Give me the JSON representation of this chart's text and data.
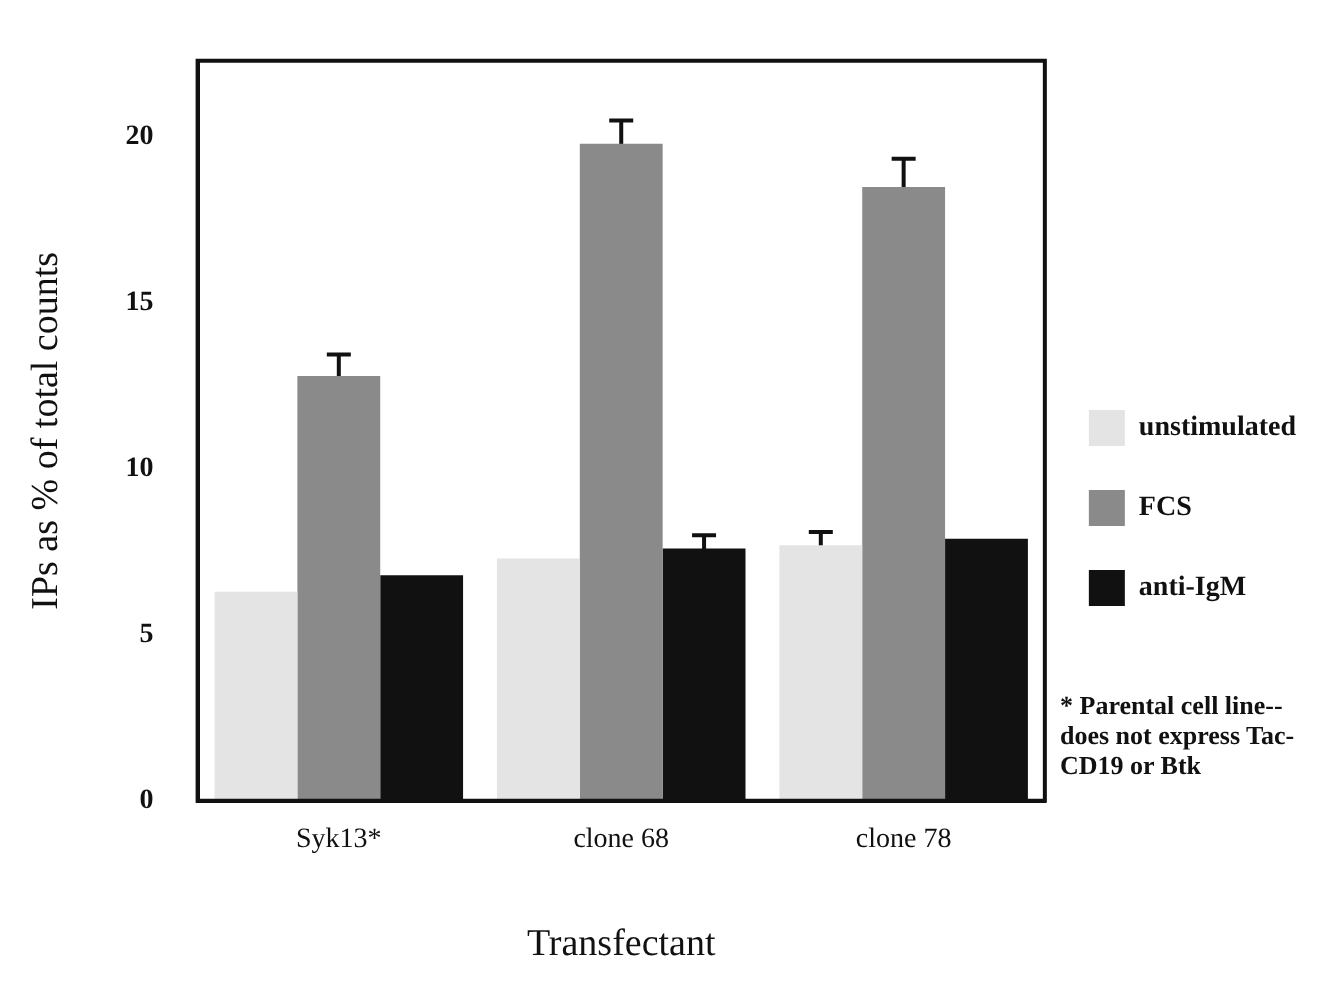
{
  "chart_data": {
    "type": "bar",
    "xlabel": "Transfectant",
    "ylabel": "IPs as % of total counts",
    "categories": [
      "Syk13*",
      "clone 68",
      "clone 78"
    ],
    "series": [
      {
        "name": "unstimulated",
        "color": "#e4e4e4",
        "values": [
          6.3,
          7.3,
          7.7
        ],
        "errors": [
          null,
          null,
          0.4
        ]
      },
      {
        "name": "FCS",
        "color": "#8a8a8a",
        "values": [
          12.8,
          19.8,
          18.5
        ],
        "errors": [
          0.65,
          0.7,
          0.85
        ]
      },
      {
        "name": "anti-IgM",
        "color": "#111111",
        "values": [
          6.8,
          7.6,
          7.9
        ],
        "errors": [
          null,
          0.4,
          null
        ]
      }
    ],
    "ylim": [
      0,
      22.3
    ],
    "yticks": [
      0,
      5,
      10,
      15,
      20
    ],
    "grid": false,
    "legend": "right",
    "annotations": [
      "* Parental cell line-- does not express Tac-CD19 or Btk"
    ]
  }
}
